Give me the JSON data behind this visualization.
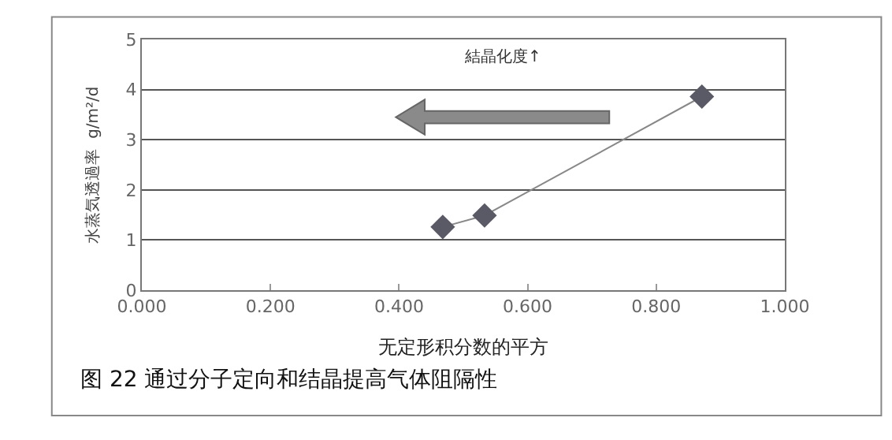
{
  "chart_data": {
    "type": "line",
    "xlabel": "无定形积分数的平方",
    "ylabel": "水蒸気透過率  g/m²/d",
    "x": [
      0.468,
      0.533,
      0.871
    ],
    "series": [
      {
        "color": "#5a5a66",
        "values": [
          1.26,
          1.49,
          3.86
        ]
      }
    ],
    "xlim": [
      0,
      1
    ],
    "xticks": [
      {
        "value": 0,
        "label": "0.000"
      },
      {
        "value": 0.2,
        "label": "0.200"
      },
      {
        "value": 0.4,
        "label": "0.400"
      },
      {
        "value": 0.6,
        "label": "0.600"
      },
      {
        "value": 0.8,
        "label": "0.800"
      },
      {
        "value": 1,
        "label": "1.000"
      }
    ],
    "ylim": [
      0,
      5
    ],
    "yticks": [
      0,
      1,
      2,
      3,
      4,
      5
    ],
    "grid": "y",
    "marker": "diamond",
    "line_style": "solid",
    "legend": false,
    "annotations": [
      "結晶化度↑",
      "图 22 通过分子定向和结晶提高气体阻隔性"
    ]
  }
}
